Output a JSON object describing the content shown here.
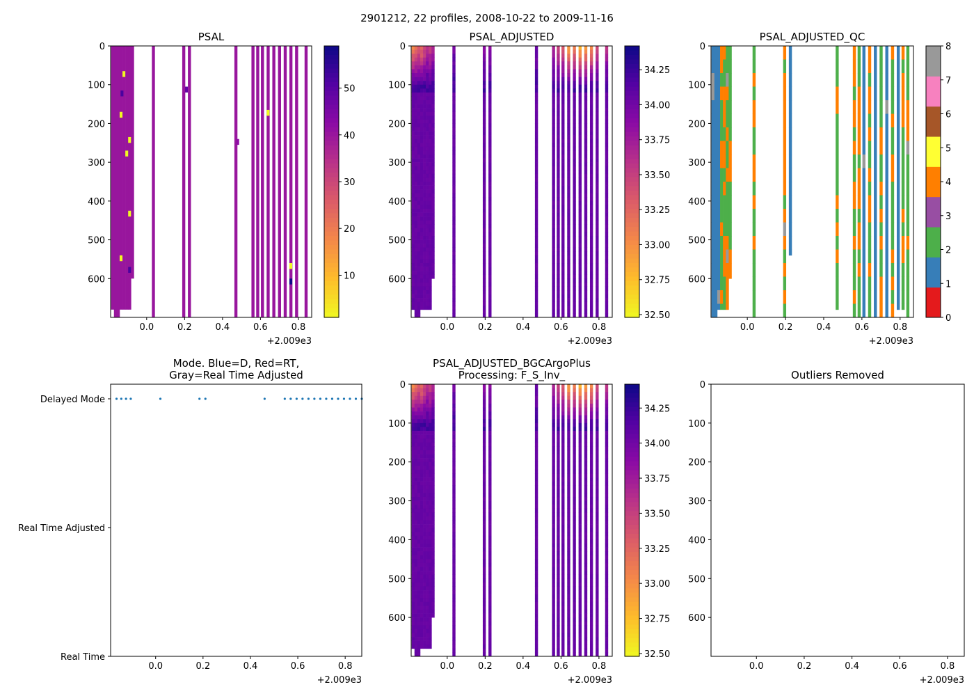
{
  "suptitle": "2901212, 22 profiles, 2008-10-22 to 2009-11-16",
  "chart_data": [
    {
      "id": "psal",
      "type": "heatmap",
      "title": "PSAL",
      "xlim": [
        -0.19,
        0.87
      ],
      "ylim": [
        700,
        0
      ],
      "x_ticks": [
        0.0,
        0.2,
        0.4,
        0.6,
        0.8
      ],
      "x_tick_labels": [
        "0.0",
        "0.2",
        "0.4",
        "0.6",
        "0.8"
      ],
      "x_offset_label": "+2.009e3",
      "y_ticks": [
        0,
        100,
        200,
        300,
        400,
        500,
        600
      ],
      "y_tick_labels": [
        "0",
        "100",
        "200",
        "300",
        "400",
        "500",
        "600"
      ],
      "colormap": "plasma_r",
      "colorbar": {
        "range": [
          1,
          59
        ],
        "ticks": [
          10,
          20,
          30,
          40,
          50
        ],
        "tick_labels": [
          "10",
          "20",
          "30",
          "40",
          "50"
        ]
      },
      "profiles": [
        {
          "x": -0.18,
          "depth_max": 680,
          "base": 34.0
        },
        {
          "x": -0.165,
          "depth_max": 700,
          "base": 34.0
        },
        {
          "x": -0.15,
          "depth_max": 700,
          "base": 34.0
        },
        {
          "x": -0.135,
          "depth_max": 680,
          "base": 34.0
        },
        {
          "x": -0.12,
          "depth_max": 680,
          "base": 34.0
        },
        {
          "x": -0.105,
          "depth_max": 680,
          "base": 34.0
        },
        {
          "x": -0.09,
          "depth_max": 680,
          "base": 34.0
        },
        {
          "x": -0.075,
          "depth_max": 600,
          "base": 34.0
        },
        {
          "x": 0.035,
          "depth_max": 700,
          "base": 34.0
        },
        {
          "x": 0.195,
          "depth_max": 700,
          "base": 34.0
        },
        {
          "x": 0.225,
          "depth_max": 700,
          "base": 34.0
        },
        {
          "x": 0.47,
          "depth_max": 700,
          "base": 34.0
        },
        {
          "x": 0.56,
          "depth_max": 700,
          "base": 34.0
        },
        {
          "x": 0.585,
          "depth_max": 700,
          "base": 34.0
        },
        {
          "x": 0.61,
          "depth_max": 700,
          "base": 34.0
        },
        {
          "x": 0.64,
          "depth_max": 700,
          "base": 34.0
        },
        {
          "x": 0.67,
          "depth_max": 700,
          "base": 34.0
        },
        {
          "x": 0.7,
          "depth_max": 700,
          "base": 34.0
        },
        {
          "x": 0.73,
          "depth_max": 700,
          "base": 34.0
        },
        {
          "x": 0.76,
          "depth_max": 700,
          "base": 34.0
        },
        {
          "x": 0.79,
          "depth_max": 700,
          "base": 34.0
        },
        {
          "x": 0.84,
          "depth_max": 700,
          "base": 34.0
        }
      ],
      "anomalies": [
        {
          "x": -0.12,
          "depth": 65,
          "value": 1
        },
        {
          "x": -0.13,
          "depth": 115,
          "value": 52
        },
        {
          "x": -0.135,
          "depth": 170,
          "value": 1
        },
        {
          "x": -0.105,
          "depth": 270,
          "value": 1
        },
        {
          "x": -0.09,
          "depth": 235,
          "value": 1
        },
        {
          "x": -0.09,
          "depth": 425,
          "value": 1
        },
        {
          "x": -0.135,
          "depth": 540,
          "value": 1
        },
        {
          "x": -0.09,
          "depth": 570,
          "value": 52
        },
        {
          "x": 0.21,
          "depth": 105,
          "value": 48
        },
        {
          "x": 0.48,
          "depth": 240,
          "value": 42
        },
        {
          "x": 0.64,
          "depth": 165,
          "value": 1
        },
        {
          "x": 0.76,
          "depth": 560,
          "value": 1
        },
        {
          "x": 0.76,
          "depth": 600,
          "value": 59
        }
      ]
    },
    {
      "id": "psal_adjusted",
      "type": "heatmap",
      "title": "PSAL_ADJUSTED",
      "xlim": [
        -0.19,
        0.87
      ],
      "ylim": [
        700,
        0
      ],
      "x_ticks": [
        0.0,
        0.2,
        0.4,
        0.6,
        0.8
      ],
      "x_tick_labels": [
        "0.0",
        "0.2",
        "0.4",
        "0.6",
        "0.8"
      ],
      "x_offset_label": "+2.009e3",
      "y_ticks": [
        0,
        100,
        200,
        300,
        400,
        500,
        600
      ],
      "y_tick_labels": [
        "0",
        "100",
        "200",
        "300",
        "400",
        "500",
        "600"
      ],
      "colormap": "plasma_r",
      "colorbar": {
        "range": [
          32.48,
          34.42
        ],
        "ticks": [
          32.5,
          32.75,
          33.0,
          33.25,
          33.5,
          33.75,
          34.0,
          34.25
        ],
        "tick_labels": [
          "32.50",
          "32.75",
          "33.00",
          "33.25",
          "33.50",
          "33.75",
          "34.00",
          "34.25"
        ]
      },
      "profiles": [
        {
          "x": -0.18,
          "depth_max": 680,
          "surface": 33.1
        },
        {
          "x": -0.165,
          "depth_max": 700,
          "surface": 33.2
        },
        {
          "x": -0.15,
          "depth_max": 700,
          "surface": 33.3
        },
        {
          "x": -0.135,
          "depth_max": 680,
          "surface": 33.2
        },
        {
          "x": -0.12,
          "depth_max": 680,
          "surface": 33.4
        },
        {
          "x": -0.105,
          "depth_max": 680,
          "surface": 33.6
        },
        {
          "x": -0.09,
          "depth_max": 680,
          "surface": 33.5
        },
        {
          "x": -0.075,
          "depth_max": 600,
          "surface": 33.7
        },
        {
          "x": 0.035,
          "depth_max": 700,
          "surface": 34.0
        },
        {
          "x": 0.195,
          "depth_max": 700,
          "surface": 33.9
        },
        {
          "x": 0.225,
          "depth_max": 700,
          "surface": 33.9
        },
        {
          "x": 0.47,
          "depth_max": 700,
          "surface": 34.0
        },
        {
          "x": 0.56,
          "depth_max": 700,
          "surface": 33.7
        },
        {
          "x": 0.585,
          "depth_max": 700,
          "surface": 33.5
        },
        {
          "x": 0.61,
          "depth_max": 700,
          "surface": 33.3
        },
        {
          "x": 0.64,
          "depth_max": 700,
          "surface": 32.9
        },
        {
          "x": 0.67,
          "depth_max": 700,
          "surface": 33.1
        },
        {
          "x": 0.7,
          "depth_max": 700,
          "surface": 32.8
        },
        {
          "x": 0.73,
          "depth_max": 700,
          "surface": 32.9
        },
        {
          "x": 0.76,
          "depth_max": 700,
          "surface": 33.0
        },
        {
          "x": 0.79,
          "depth_max": 700,
          "surface": 33.4
        },
        {
          "x": 0.84,
          "depth_max": 700,
          "surface": 33.6
        }
      ]
    },
    {
      "id": "psal_adjusted_qc",
      "type": "heatmap",
      "title": "PSAL_ADJUSTED_QC",
      "xlim": [
        -0.19,
        0.87
      ],
      "ylim": [
        700,
        0
      ],
      "x_ticks": [
        0.0,
        0.2,
        0.4,
        0.6,
        0.8
      ],
      "x_tick_labels": [
        "0.0",
        "0.2",
        "0.4",
        "0.6",
        "0.8"
      ],
      "x_offset_label": "+2.009e3",
      "y_ticks": [
        0,
        100,
        200,
        300,
        400,
        500,
        600
      ],
      "y_tick_labels": [
        "0",
        "100",
        "200",
        "300",
        "400",
        "500",
        "600"
      ],
      "colorbar": {
        "range": [
          0,
          8
        ],
        "ticks": [
          0,
          1,
          2,
          3,
          4,
          5,
          6,
          7,
          8
        ],
        "tick_labels": [
          "0",
          "1",
          "2",
          "3",
          "4",
          "5",
          "6",
          "7",
          "8"
        ],
        "colors": [
          "#e41a1c",
          "#377eb8",
          "#4daf4a",
          "#984ea3",
          "#ff7f00",
          "#ffff33",
          "#a65628",
          "#f781bf",
          "#999999"
        ]
      },
      "profiles": [
        {
          "x": -0.18,
          "depth_max": 700,
          "qc": 1
        },
        {
          "x": -0.165,
          "depth_max": 700,
          "qc": 1
        },
        {
          "x": -0.15,
          "depth_max": 680,
          "qc": 1
        },
        {
          "x": -0.135,
          "depth_max": 680,
          "qc": 2
        },
        {
          "x": -0.12,
          "depth_max": 680,
          "qc": 2
        },
        {
          "x": -0.105,
          "depth_max": 680,
          "qc": 2
        },
        {
          "x": -0.09,
          "depth_max": 600,
          "qc": 2
        },
        {
          "x": 0.035,
          "depth_max": 700,
          "qc": 2
        },
        {
          "x": 0.195,
          "depth_max": 700,
          "qc": 4
        },
        {
          "x": 0.225,
          "depth_max": 540,
          "qc": 1
        },
        {
          "x": 0.47,
          "depth_max": 680,
          "qc": 2
        },
        {
          "x": 0.56,
          "depth_max": 700,
          "qc": 2
        },
        {
          "x": 0.585,
          "depth_max": 700,
          "qc": 2
        },
        {
          "x": 0.61,
          "depth_max": 700,
          "qc": 1
        },
        {
          "x": 0.64,
          "depth_max": 700,
          "qc": 2
        },
        {
          "x": 0.67,
          "depth_max": 700,
          "qc": 1
        },
        {
          "x": 0.7,
          "depth_max": 700,
          "qc": 2
        },
        {
          "x": 0.73,
          "depth_max": 700,
          "qc": 1
        },
        {
          "x": 0.76,
          "depth_max": 700,
          "qc": 2
        },
        {
          "x": 0.79,
          "depth_max": 680,
          "qc": 1
        },
        {
          "x": 0.815,
          "depth_max": 680,
          "qc": 2
        },
        {
          "x": 0.84,
          "depth_max": 700,
          "qc": 2
        }
      ]
    },
    {
      "id": "mode",
      "type": "scatter",
      "title": "Mode. Blue=D, Red=RT,\nGray=Real Time Adjusted",
      "xlim": [
        -0.19,
        0.87
      ],
      "x_ticks": [
        0.0,
        0.2,
        0.4,
        0.6,
        0.8
      ],
      "x_tick_labels": [
        "0.0",
        "0.2",
        "0.4",
        "0.6",
        "0.8"
      ],
      "x_offset_label": "+2.009e3",
      "y_categories": [
        "Delayed Mode",
        "Real Time Adjusted",
        "Real Time"
      ],
      "points": [
        {
          "x": -0.165,
          "mode": "Delayed Mode"
        },
        {
          "x": -0.145,
          "mode": "Delayed Mode"
        },
        {
          "x": -0.125,
          "mode": "Delayed Mode"
        },
        {
          "x": -0.105,
          "mode": "Delayed Mode"
        },
        {
          "x": 0.02,
          "mode": "Delayed Mode"
        },
        {
          "x": 0.185,
          "mode": "Delayed Mode"
        },
        {
          "x": 0.21,
          "mode": "Delayed Mode"
        },
        {
          "x": 0.46,
          "mode": "Delayed Mode"
        },
        {
          "x": 0.545,
          "mode": "Delayed Mode"
        },
        {
          "x": 0.57,
          "mode": "Delayed Mode"
        },
        {
          "x": 0.595,
          "mode": "Delayed Mode"
        },
        {
          "x": 0.62,
          "mode": "Delayed Mode"
        },
        {
          "x": 0.645,
          "mode": "Delayed Mode"
        },
        {
          "x": 0.67,
          "mode": "Delayed Mode"
        },
        {
          "x": 0.695,
          "mode": "Delayed Mode"
        },
        {
          "x": 0.72,
          "mode": "Delayed Mode"
        },
        {
          "x": 0.745,
          "mode": "Delayed Mode"
        },
        {
          "x": 0.77,
          "mode": "Delayed Mode"
        },
        {
          "x": 0.795,
          "mode": "Delayed Mode"
        },
        {
          "x": 0.82,
          "mode": "Delayed Mode"
        },
        {
          "x": 0.845,
          "mode": "Delayed Mode"
        },
        {
          "x": 0.87,
          "mode": "Delayed Mode"
        }
      ],
      "point_color": "#1f77b4"
    },
    {
      "id": "psal_bgc",
      "type": "heatmap",
      "title": "PSAL_ADJUSTED_BGCArgoPlus\nProcessing: F_S_Inv_",
      "xlim": [
        -0.19,
        0.87
      ],
      "ylim": [
        700,
        0
      ],
      "x_ticks": [
        0.0,
        0.2,
        0.4,
        0.6,
        0.8
      ],
      "x_tick_labels": [
        "0.0",
        "0.2",
        "0.4",
        "0.6",
        "0.8"
      ],
      "x_offset_label": "+2.009e3",
      "y_ticks": [
        0,
        100,
        200,
        300,
        400,
        500,
        600
      ],
      "y_tick_labels": [
        "0",
        "100",
        "200",
        "300",
        "400",
        "500",
        "600"
      ],
      "colormap": "plasma_r",
      "colorbar": {
        "range": [
          32.48,
          34.42
        ],
        "ticks": [
          32.5,
          32.75,
          33.0,
          33.25,
          33.5,
          33.75,
          34.0,
          34.25
        ],
        "tick_labels": [
          "32.50",
          "32.75",
          "33.00",
          "33.25",
          "33.50",
          "33.75",
          "34.00",
          "34.25"
        ]
      },
      "same_as": "psal_adjusted"
    },
    {
      "id": "outliers",
      "type": "scatter",
      "title": "Outliers Removed",
      "xlim": [
        -0.19,
        0.87
      ],
      "ylim": [
        700,
        0
      ],
      "x_ticks": [
        0.0,
        0.2,
        0.4,
        0.6,
        0.8
      ],
      "x_tick_labels": [
        "0.0",
        "0.2",
        "0.4",
        "0.6",
        "0.8"
      ],
      "x_offset_label": "+2.009e3",
      "y_ticks": [
        0,
        100,
        200,
        300,
        400,
        500,
        600
      ],
      "y_tick_labels": [
        "0",
        "100",
        "200",
        "300",
        "400",
        "500",
        "600"
      ],
      "points": []
    }
  ]
}
